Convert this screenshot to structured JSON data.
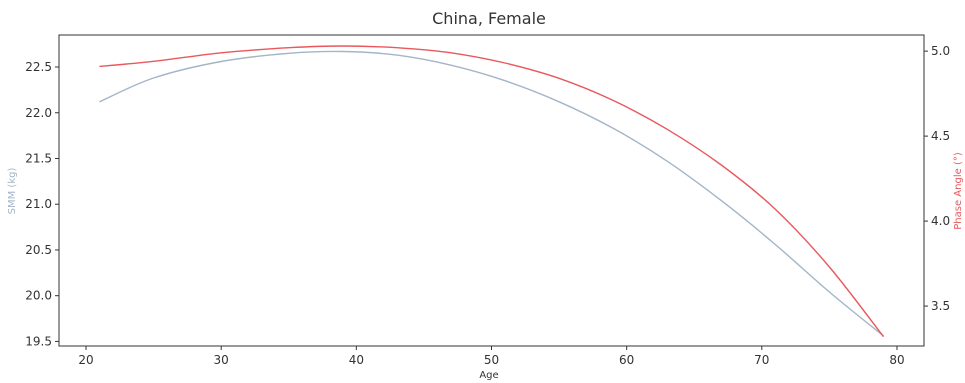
{
  "chart_data": {
    "type": "line",
    "title": "China, Female",
    "xlabel": "Age",
    "ylabel_left": "SMM (kg)",
    "ylabel_right": "Phase Angle (°)",
    "xlim": [
      18,
      82
    ],
    "ylim_left": [
      19.45,
      22.85
    ],
    "ylim_right": [
      3.265,
      5.095
    ],
    "x_ticks": [
      20,
      30,
      40,
      50,
      60,
      70,
      80
    ],
    "y_left_ticks": [
      19.5,
      20.0,
      20.5,
      21.0,
      21.5,
      22.0,
      22.5
    ],
    "y_right_ticks": [
      3.5,
      4.0,
      4.5,
      5.0
    ],
    "grid": false,
    "colors": {
      "smm": "#a3b5c7",
      "phase": "#e8585d",
      "axis_left_label": "#a3b5c7",
      "axis_right_label": "#e8585d"
    },
    "series": [
      {
        "name": "SMM (kg)",
        "axis": "left",
        "x": [
          21,
          25,
          30,
          35,
          39,
          43,
          47,
          51,
          55,
          59,
          63,
          67,
          71,
          75,
          79
        ],
        "y": [
          22.12,
          22.38,
          22.56,
          22.65,
          22.67,
          22.63,
          22.52,
          22.35,
          22.12,
          21.83,
          21.47,
          21.04,
          20.56,
          20.04,
          19.56
        ]
      },
      {
        "name": "Phase Angle (°)",
        "axis": "right",
        "x": [
          21,
          25,
          30,
          35,
          39,
          43,
          47,
          51,
          55,
          59,
          63,
          67,
          71,
          75,
          79
        ],
        "y": [
          4.91,
          4.94,
          4.99,
          5.02,
          5.03,
          5.02,
          4.99,
          4.93,
          4.84,
          4.71,
          4.54,
          4.33,
          4.07,
          3.73,
          3.32
        ]
      }
    ]
  }
}
